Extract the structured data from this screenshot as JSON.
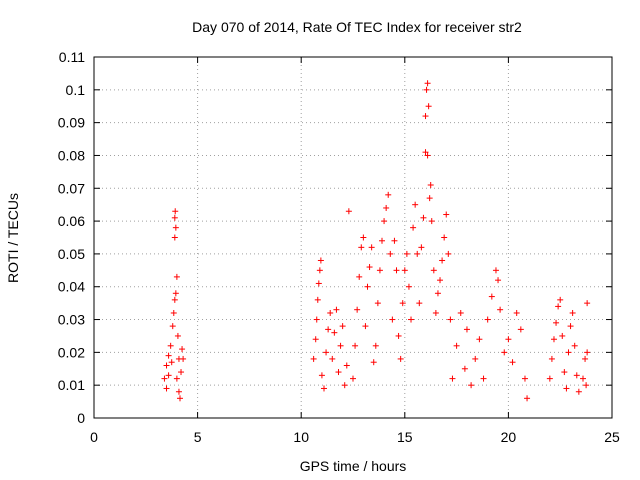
{
  "chart_data": {
    "type": "scatter",
    "title": "Day 070 of 2014, Rate Of TEC Index for receiver str2",
    "xlabel": "GPS time / hours",
    "ylabel": "ROTI / TECUs",
    "xlim": [
      0,
      25
    ],
    "ylim": [
      0,
      0.11
    ],
    "xticks": [
      0,
      5,
      10,
      15,
      20,
      25
    ],
    "xtick_labels": [
      "0",
      "5",
      "10",
      "15",
      "20",
      "25"
    ],
    "yticks": [
      0,
      0.01,
      0.02,
      0.03,
      0.04,
      0.05,
      0.06,
      0.07,
      0.08,
      0.09,
      0.1,
      0.11
    ],
    "ytick_labels": [
      "0",
      "0.01",
      "0.02",
      "0.03",
      "0.04",
      "0.05",
      "0.06",
      "0.07",
      "0.08",
      "0.09",
      "0.1",
      "0.11"
    ],
    "grid": true,
    "marker": "+",
    "color": "#ff0000",
    "series": [
      {
        "name": "ROTI",
        "points": [
          [
            3.4,
            0.012
          ],
          [
            3.5,
            0.016
          ],
          [
            3.6,
            0.019
          ],
          [
            3.7,
            0.022
          ],
          [
            3.8,
            0.028
          ],
          [
            3.85,
            0.032
          ],
          [
            3.9,
            0.036
          ],
          [
            3.95,
            0.038
          ],
          [
            3.9,
            0.055
          ],
          [
            3.95,
            0.058
          ],
          [
            3.9,
            0.061
          ],
          [
            3.92,
            0.063
          ],
          [
            4.0,
            0.043
          ],
          [
            4.05,
            0.025
          ],
          [
            4.1,
            0.018
          ],
          [
            4.1,
            0.008
          ],
          [
            4.15,
            0.006
          ],
          [
            4.2,
            0.014
          ],
          [
            4.25,
            0.021
          ],
          [
            4.3,
            0.018
          ],
          [
            3.5,
            0.009
          ],
          [
            3.6,
            0.013
          ],
          [
            3.75,
            0.017
          ],
          [
            4.0,
            0.012
          ],
          [
            10.6,
            0.018
          ],
          [
            10.7,
            0.024
          ],
          [
            10.75,
            0.03
          ],
          [
            10.8,
            0.036
          ],
          [
            10.85,
            0.041
          ],
          [
            10.9,
            0.045
          ],
          [
            10.95,
            0.048
          ],
          [
            11.0,
            0.013
          ],
          [
            11.1,
            0.009
          ],
          [
            11.2,
            0.02
          ],
          [
            11.3,
            0.027
          ],
          [
            11.4,
            0.032
          ],
          [
            11.5,
            0.018
          ],
          [
            11.6,
            0.026
          ],
          [
            11.7,
            0.033
          ],
          [
            11.8,
            0.014
          ],
          [
            11.9,
            0.022
          ],
          [
            12.0,
            0.028
          ],
          [
            12.1,
            0.01
          ],
          [
            12.2,
            0.016
          ],
          [
            12.3,
            0.063
          ],
          [
            12.5,
            0.012
          ],
          [
            12.6,
            0.022
          ],
          [
            12.7,
            0.033
          ],
          [
            12.8,
            0.043
          ],
          [
            12.9,
            0.052
          ],
          [
            13.0,
            0.055
          ],
          [
            13.1,
            0.028
          ],
          [
            13.2,
            0.04
          ],
          [
            13.3,
            0.046
          ],
          [
            13.4,
            0.052
          ],
          [
            13.5,
            0.017
          ],
          [
            13.6,
            0.022
          ],
          [
            13.7,
            0.035
          ],
          [
            13.8,
            0.045
          ],
          [
            13.9,
            0.054
          ],
          [
            14.0,
            0.06
          ],
          [
            14.1,
            0.064
          ],
          [
            14.2,
            0.068
          ],
          [
            14.3,
            0.05
          ],
          [
            14.4,
            0.03
          ],
          [
            14.5,
            0.054
          ],
          [
            14.6,
            0.045
          ],
          [
            14.7,
            0.025
          ],
          [
            14.8,
            0.018
          ],
          [
            14.9,
            0.035
          ],
          [
            15.0,
            0.045
          ],
          [
            15.1,
            0.05
          ],
          [
            15.2,
            0.04
          ],
          [
            15.3,
            0.03
          ],
          [
            15.4,
            0.058
          ],
          [
            15.5,
            0.065
          ],
          [
            15.6,
            0.05
          ],
          [
            15.7,
            0.035
          ],
          [
            15.8,
            0.052
          ],
          [
            15.9,
            0.061
          ],
          [
            16.0,
            0.092
          ],
          [
            16.05,
            0.1
          ],
          [
            16.1,
            0.102
          ],
          [
            16.15,
            0.095
          ],
          [
            16.0,
            0.081
          ],
          [
            16.1,
            0.08
          ],
          [
            16.2,
            0.067
          ],
          [
            16.25,
            0.071
          ],
          [
            16.3,
            0.06
          ],
          [
            16.4,
            0.045
          ],
          [
            16.5,
            0.032
          ],
          [
            16.6,
            0.038
          ],
          [
            16.7,
            0.042
          ],
          [
            16.8,
            0.048
          ],
          [
            16.9,
            0.055
          ],
          [
            17.0,
            0.062
          ],
          [
            17.1,
            0.05
          ],
          [
            17.2,
            0.03
          ],
          [
            17.3,
            0.012
          ],
          [
            17.5,
            0.022
          ],
          [
            17.7,
            0.032
          ],
          [
            17.9,
            0.015
          ],
          [
            18.0,
            0.027
          ],
          [
            18.2,
            0.01
          ],
          [
            18.4,
            0.018
          ],
          [
            18.6,
            0.024
          ],
          [
            18.8,
            0.012
          ],
          [
            19.0,
            0.03
          ],
          [
            19.2,
            0.037
          ],
          [
            19.4,
            0.045
          ],
          [
            19.5,
            0.042
          ],
          [
            19.6,
            0.033
          ],
          [
            19.8,
            0.02
          ],
          [
            20.0,
            0.024
          ],
          [
            20.2,
            0.017
          ],
          [
            20.4,
            0.032
          ],
          [
            20.6,
            0.027
          ],
          [
            20.8,
            0.012
          ],
          [
            20.9,
            0.006
          ],
          [
            22.0,
            0.012
          ],
          [
            22.1,
            0.018
          ],
          [
            22.2,
            0.024
          ],
          [
            22.3,
            0.029
          ],
          [
            22.4,
            0.034
          ],
          [
            22.5,
            0.036
          ],
          [
            22.6,
            0.025
          ],
          [
            22.7,
            0.014
          ],
          [
            22.8,
            0.009
          ],
          [
            22.9,
            0.02
          ],
          [
            23.0,
            0.028
          ],
          [
            23.1,
            0.032
          ],
          [
            23.2,
            0.022
          ],
          [
            23.3,
            0.013
          ],
          [
            23.4,
            0.008
          ],
          [
            23.6,
            0.012
          ],
          [
            23.7,
            0.018
          ],
          [
            23.8,
            0.035
          ],
          [
            23.8,
            0.02
          ],
          [
            23.75,
            0.01
          ]
        ]
      }
    ]
  }
}
